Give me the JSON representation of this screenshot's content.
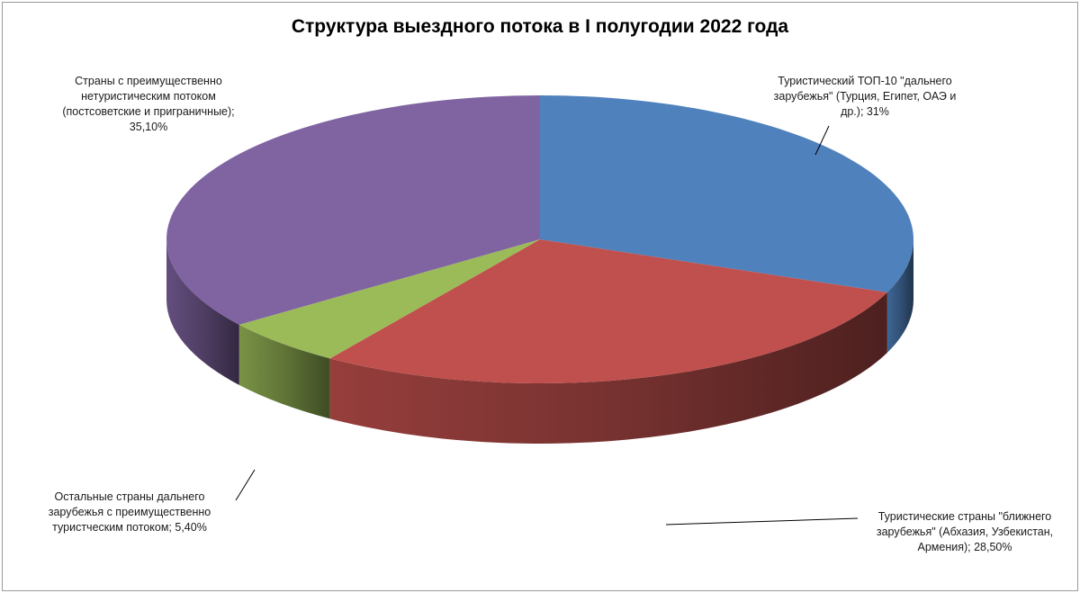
{
  "chart_data": {
    "type": "pie",
    "variant": "3d",
    "title": "Структура выездного потока в I полугодии 2022 года",
    "legend": "none",
    "slices": [
      {
        "value": 31,
        "value_label": "31%",
        "color": "#4F81BD",
        "label_lines": [
          "Туристический ТОП-10 \"дальнего",
          "зарубежья\" (Турция,  Египет, ОАЭ и",
          "др.); 31%"
        ]
      },
      {
        "value": 28.5,
        "value_label": "28,50%",
        "color": "#C0504D",
        "label_lines": [
          "Туристические страны \"ближнего",
          "зарубежья\" (Абхазия, Узбекистан,",
          "Армения); 28,50%"
        ]
      },
      {
        "value": 5.4,
        "value_label": "5,40%",
        "color": "#9BBB59",
        "label_lines": [
          "Остальные страны дальнего",
          "зарубежья с преимущественно",
          "туристческим потоком; 5,40%"
        ]
      },
      {
        "value": 35.1,
        "value_label": "35,10%",
        "color": "#8064A2",
        "label_lines": [
          "Страны с преимущественно",
          "нетуристическим потоком",
          "(постсоветские и приграничные);",
          "35,10%"
        ]
      }
    ]
  }
}
